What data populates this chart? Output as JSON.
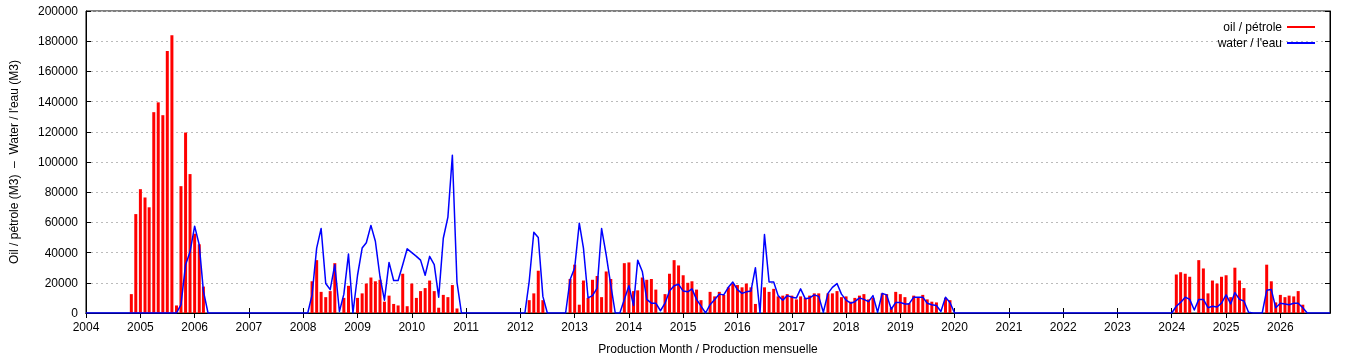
{
  "chart_data": {
    "type": "bar",
    "xlabel": "Production Month / Production mensuelle",
    "ylabel": "Oil / pétrole (M3)  –  Water / l'eau (M3)",
    "xlim": [
      "2004-01",
      "2026-12"
    ],
    "xticks": [
      "2004",
      "2005",
      "2006",
      "2007",
      "2008",
      "2009",
      "2010",
      "2011",
      "2012",
      "2013",
      "2014",
      "2015",
      "2016",
      "2017",
      "2018",
      "2019",
      "2020",
      "2021",
      "2022",
      "2023",
      "2024",
      "2025",
      "2026"
    ],
    "ylim": [
      0,
      200000
    ],
    "yticks": [
      0,
      20000,
      40000,
      60000,
      80000,
      100000,
      120000,
      140000,
      160000,
      180000,
      200000
    ],
    "grid": "y",
    "legend": "top right",
    "series": [
      {
        "name": "oil / pétrole",
        "color": "#ff0000",
        "x": [
          "2004-11",
          "2004-12",
          "2005-01",
          "2005-02",
          "2005-03",
          "2005-04",
          "2005-05",
          "2005-06",
          "2005-07",
          "2005-08",
          "2005-09",
          "2005-10",
          "2005-11",
          "2005-12",
          "2006-01",
          "2006-02",
          "2006-03",
          "2008-03",
          "2008-04",
          "2008-05",
          "2008-06",
          "2008-07",
          "2008-08",
          "2008-10",
          "2008-11",
          "2009-01",
          "2009-02",
          "2009-03",
          "2009-04",
          "2009-05",
          "2009-06",
          "2009-07",
          "2009-08",
          "2009-09",
          "2009-10",
          "2009-11",
          "2009-12",
          "2010-01",
          "2010-02",
          "2010-03",
          "2010-04",
          "2010-05",
          "2010-06",
          "2010-07",
          "2010-08",
          "2010-09",
          "2010-10",
          "2010-11",
          "2012-03",
          "2012-04",
          "2012-05",
          "2012-06",
          "2012-12",
          "2013-01",
          "2013-02",
          "2013-03",
          "2013-04",
          "2013-05",
          "2013-06",
          "2013-07",
          "2013-08",
          "2013-09",
          "2013-12",
          "2014-01",
          "2014-02",
          "2014-03",
          "2014-04",
          "2014-05",
          "2014-06",
          "2014-07",
          "2014-09",
          "2014-10",
          "2014-11",
          "2014-12",
          "2015-01",
          "2015-02",
          "2015-03",
          "2015-04",
          "2015-05",
          "2015-07",
          "2015-08",
          "2015-09",
          "2015-10",
          "2015-11",
          "2015-12",
          "2016-01",
          "2016-02",
          "2016-03",
          "2016-04",
          "2016-05",
          "2016-07",
          "2016-08",
          "2016-09",
          "2016-10",
          "2016-11",
          "2016-12",
          "2017-01",
          "2017-02",
          "2017-03",
          "2017-04",
          "2017-05",
          "2017-06",
          "2017-07",
          "2017-09",
          "2017-10",
          "2017-11",
          "2017-12",
          "2018-01",
          "2018-02",
          "2018-03",
          "2018-04",
          "2018-05",
          "2018-06",
          "2018-07",
          "2018-09",
          "2018-10",
          "2018-11",
          "2018-12",
          "2019-01",
          "2019-02",
          "2019-03",
          "2019-04",
          "2019-05",
          "2019-06",
          "2019-07",
          "2019-08",
          "2019-09",
          "2019-11",
          "2019-12",
          "2024-02",
          "2024-03",
          "2024-04",
          "2024-05",
          "2024-07",
          "2024-08",
          "2024-09",
          "2024-10",
          "2024-11",
          "2024-12",
          "2025-01",
          "2025-02",
          "2025-03",
          "2025-04",
          "2025-05",
          "2025-10",
          "2025-11",
          "2025-12",
          "2026-01",
          "2026-02",
          "2026-03",
          "2026-04",
          "2026-05",
          "2026-06"
        ],
        "values": [
          12500,
          65500,
          82000,
          76500,
          70000,
          133000,
          139500,
          131000,
          173500,
          184000,
          5000,
          84000,
          119500,
          92000,
          52500,
          45500,
          17500,
          21000,
          35000,
          14000,
          10500,
          14500,
          33000,
          10000,
          18000,
          10000,
          13000,
          19500,
          23500,
          21000,
          22000,
          7500,
          11500,
          6000,
          5000,
          26000,
          4500,
          19500,
          10000,
          14500,
          16500,
          21500,
          14500,
          3500,
          12000,
          10500,
          18500,
          3000,
          8500,
          13000,
          28000,
          8500,
          22500,
          32000,
          5500,
          21500,
          10000,
          22000,
          24500,
          10500,
          27500,
          22500,
          33000,
          33500,
          14500,
          15000,
          23500,
          22000,
          22500,
          15500,
          12500,
          26000,
          35000,
          31500,
          25000,
          20000,
          21000,
          15500,
          8500,
          14000,
          11000,
          14000,
          12000,
          17000,
          19500,
          18500,
          17000,
          19500,
          17000,
          6000,
          17000,
          14000,
          16000,
          11000,
          11500,
          12500,
          11500,
          9000,
          11000,
          10000,
          11500,
          13000,
          13000,
          13000,
          13000,
          14500,
          10500,
          11000,
          7500,
          10000,
          11500,
          12500,
          9000,
          10000,
          13000,
          12500,
          3500,
          14000,
          12500,
          10500,
          6500,
          11500,
          10500,
          12000,
          9000,
          7500,
          7000,
          10000,
          8500,
          25500,
          27000,
          26000,
          24000,
          35000,
          29500,
          13000,
          21500,
          19500,
          24000,
          25000,
          10500,
          30000,
          21500,
          16500,
          32000,
          21000,
          7000,
          12000,
          10500,
          11500,
          11000,
          14500,
          5500
        ]
      },
      {
        "name": "water / l'eau",
        "type": "line",
        "color": "#0000ff",
        "x": [
          "2004-01",
          "2005-09",
          "2005-10",
          "2005-11",
          "2005-12",
          "2006-01",
          "2006-02",
          "2006-03",
          "2006-04",
          "2008-02",
          "2008-03",
          "2008-04",
          "2008-05",
          "2008-06",
          "2008-07",
          "2008-08",
          "2008-09",
          "2008-10",
          "2008-11",
          "2008-12",
          "2009-01",
          "2009-02",
          "2009-03",
          "2009-04",
          "2009-05",
          "2009-06",
          "2009-07",
          "2009-08",
          "2009-09",
          "2009-10",
          "2009-11",
          "2009-12",
          "2010-01",
          "2010-02",
          "2010-03",
          "2010-04",
          "2010-05",
          "2010-06",
          "2010-07",
          "2010-08",
          "2010-09",
          "2010-10",
          "2010-11",
          "2010-12",
          "2012-02",
          "2012-03",
          "2012-04",
          "2012-05",
          "2012-06",
          "2012-07",
          "2012-11",
          "2012-12",
          "2013-01",
          "2013-02",
          "2013-03",
          "2013-04",
          "2013-05",
          "2013-06",
          "2013-07",
          "2013-08",
          "2013-09",
          "2013-10",
          "2013-11",
          "2013-12",
          "2014-01",
          "2014-02",
          "2014-03",
          "2014-04",
          "2014-05",
          "2014-06",
          "2014-07",
          "2014-08",
          "2014-09",
          "2014-10",
          "2014-11",
          "2014-12",
          "2015-01",
          "2015-02",
          "2015-03",
          "2015-04",
          "2015-05",
          "2015-06",
          "2015-07",
          "2015-08",
          "2015-09",
          "2015-10",
          "2015-11",
          "2015-12",
          "2016-01",
          "2016-02",
          "2016-03",
          "2016-04",
          "2016-05",
          "2016-06",
          "2016-07",
          "2016-08",
          "2016-09",
          "2016-10",
          "2016-11",
          "2016-12",
          "2017-01",
          "2017-02",
          "2017-03",
          "2017-04",
          "2017-05",
          "2017-06",
          "2017-07",
          "2017-08",
          "2017-09",
          "2017-10",
          "2017-11",
          "2017-12",
          "2018-01",
          "2018-02",
          "2018-03",
          "2018-04",
          "2018-05",
          "2018-06",
          "2018-07",
          "2018-08",
          "2018-09",
          "2018-10",
          "2018-11",
          "2018-12",
          "2019-01",
          "2019-02",
          "2019-03",
          "2019-04",
          "2019-05",
          "2019-06",
          "2019-07",
          "2019-08",
          "2019-09",
          "2019-10",
          "2019-11",
          "2019-12",
          "2020-01",
          "2024-01",
          "2024-02",
          "2024-03",
          "2024-04",
          "2024-05",
          "2024-06",
          "2024-07",
          "2024-08",
          "2024-09",
          "2024-10",
          "2024-11",
          "2024-12",
          "2025-01",
          "2025-02",
          "2025-03",
          "2025-04",
          "2025-05",
          "2025-06",
          "2025-07",
          "2025-09",
          "2025-10",
          "2025-11",
          "2025-12",
          "2026-01",
          "2026-02",
          "2026-03",
          "2026-04",
          "2026-05",
          "2026-06",
          "2026-07",
          "2026-12"
        ],
        "values": [
          0,
          0,
          5500,
          32000,
          40500,
          57500,
          45000,
          14500,
          0,
          0,
          12000,
          43000,
          56000,
          19500,
          15500,
          32000,
          1000,
          12500,
          39000,
          0,
          25000,
          43000,
          46500,
          58000,
          47500,
          24000,
          8500,
          33500,
          21500,
          21500,
          32000,
          42500,
          40000,
          37500,
          35000,
          25000,
          37500,
          32000,
          10500,
          49500,
          63500,
          104500,
          20500,
          0,
          0,
          21000,
          53500,
          50000,
          11000,
          0,
          0,
          22000,
          30000,
          59500,
          43000,
          10000,
          11500,
          16500,
          56000,
          38500,
          18500,
          0,
          0,
          9000,
          18000,
          5000,
          35000,
          27500,
          9000,
          6500,
          6500,
          1500,
          6500,
          14500,
          18000,
          19000,
          14500,
          14000,
          16000,
          9000,
          4500,
          0,
          5500,
          9000,
          12500,
          12000,
          17000,
          20500,
          15500,
          13000,
          14000,
          14500,
          30000,
          0,
          52000,
          20500,
          20500,
          11500,
          8500,
          11500,
          10500,
          10000,
          16000,
          9500,
          10000,
          12000,
          11000,
          500,
          13000,
          17000,
          19500,
          12500,
          8500,
          6500,
          7500,
          10000,
          9000,
          7500,
          11500,
          500,
          13000,
          12000,
          2500,
          7000,
          7000,
          6000,
          6000,
          10500,
          10500,
          10500,
          6500,
          5500,
          5000,
          1000,
          10500,
          7000,
          0,
          0,
          4500,
          7000,
          10500,
          9000,
          2000,
          9000,
          9000,
          3500,
          4500,
          4000,
          6500,
          12000,
          6000,
          13500,
          9000,
          8000,
          500,
          0,
          0,
          15000,
          15500,
          3500,
          6500,
          6000,
          5500,
          6500,
          6500,
          3500,
          0,
          0
        ]
      }
    ]
  }
}
